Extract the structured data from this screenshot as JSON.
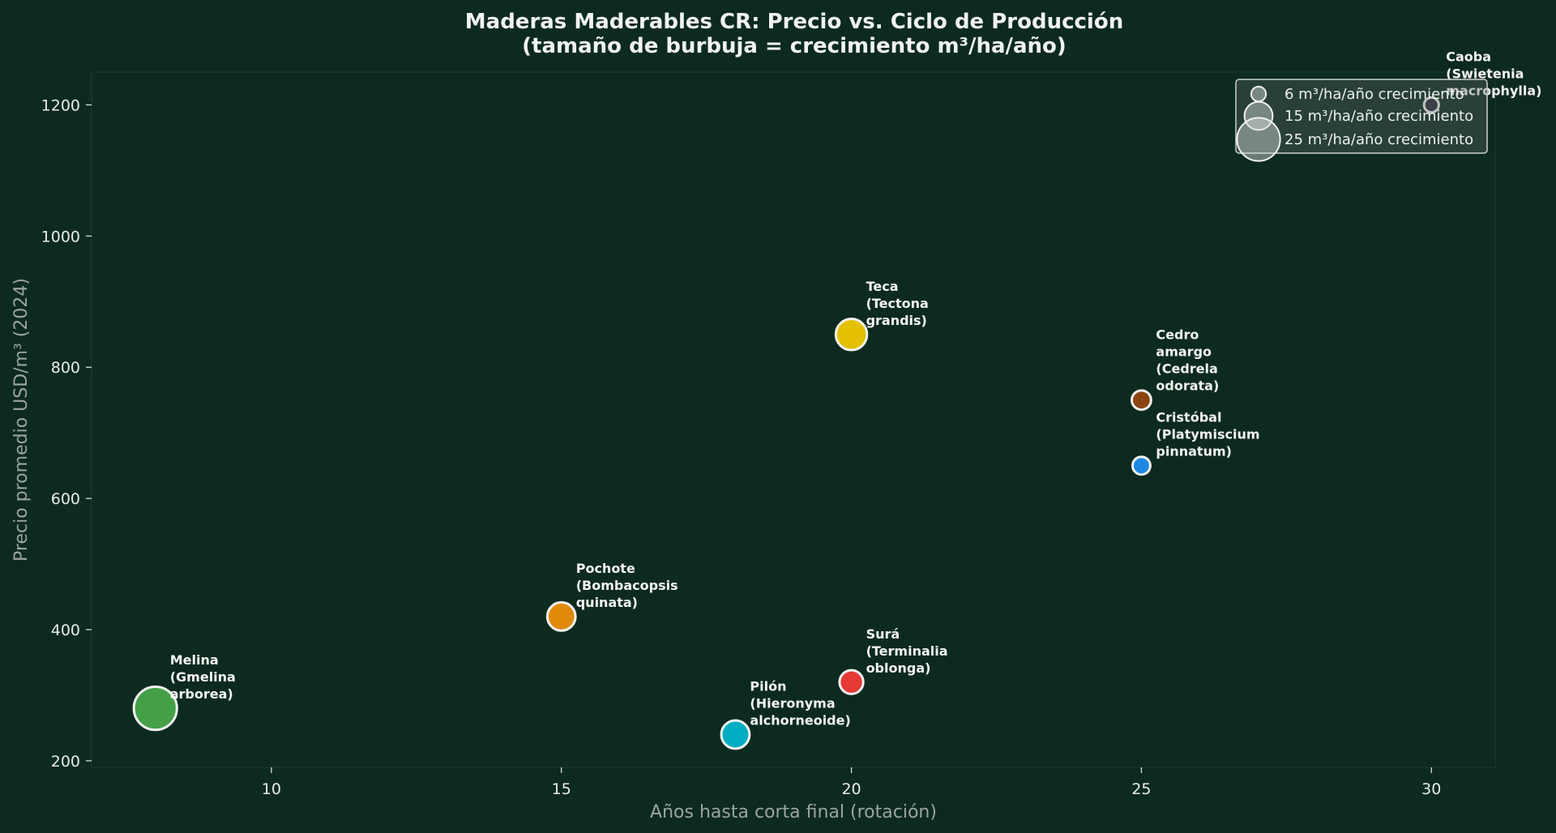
{
  "chart_data": {
    "type": "scatter",
    "title_line1": "Maderas Maderables CR: Precio vs. Ciclo de Producción",
    "title_line2": "(tamaño de burbuja = crecimiento m³/ha/año)",
    "xlabel": "Años hasta corta final (rotación)",
    "ylabel": "Precio promedio USD/m³ (2024)",
    "xlim": [
      6.9,
      31.1
    ],
    "ylim": [
      190,
      1250
    ],
    "xticks": [
      10,
      15,
      20,
      25,
      30
    ],
    "yticks": [
      200,
      400,
      600,
      800,
      1000,
      1200
    ],
    "grid": false,
    "legend_position": "top-right",
    "legend": [
      {
        "size": 6,
        "label": "6 m³/ha/año crecimiento"
      },
      {
        "size": 15,
        "label": "15 m³/ha/año crecimiento"
      },
      {
        "size": 25,
        "label": "25 m³/ha/año crecimiento"
      }
    ],
    "points": [
      {
        "x": 8,
        "y": 280,
        "growth": 25,
        "color": "#43a047",
        "label": [
          "Melina",
          "(Gmelina",
          "arborea)"
        ]
      },
      {
        "x": 15,
        "y": 420,
        "growth": 15,
        "color": "#e08a0b",
        "label": [
          "Pochote",
          "(Bombacopsis",
          "quinata)"
        ]
      },
      {
        "x": 18,
        "y": 240,
        "growth": 15,
        "color": "#00acc1",
        "label": [
          "Pilón",
          "(Hieronyma",
          "alchorneoide)"
        ]
      },
      {
        "x": 20,
        "y": 850,
        "growth": 17,
        "color": "#e3c100",
        "label": [
          "Teca",
          "(Tectona",
          "grandis)"
        ]
      },
      {
        "x": 20,
        "y": 320,
        "growth": 12,
        "color": "#e53935",
        "label": [
          "Surá",
          "(Terminalia",
          "oblonga)"
        ]
      },
      {
        "x": 25,
        "y": 750,
        "growth": 9,
        "color": "#8b4513",
        "label": [
          "Cedro",
          "amargo",
          "(Cedrela",
          "odorata)"
        ]
      },
      {
        "x": 25,
        "y": 650,
        "growth": 8,
        "color": "#1e88e5",
        "label": [
          "Cristóbal",
          "(Platymiscium",
          "pinnatum)"
        ]
      },
      {
        "x": 30,
        "y": 1200,
        "growth": 6,
        "color": "#2b2b3a",
        "label": [
          "Caoba",
          "(Swietenia",
          "macrophylla)"
        ]
      }
    ]
  }
}
